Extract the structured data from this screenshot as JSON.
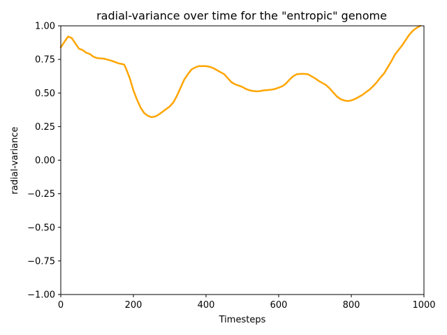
{
  "chart_data": {
    "type": "line",
    "title": "radial-variance over time for the \"entropic\" genome",
    "xlabel": "Timesteps",
    "ylabel": "radial-variance",
    "xlim": [
      0,
      1000
    ],
    "ylim": [
      -1.0,
      1.0
    ],
    "xticks": [
      0,
      200,
      400,
      600,
      800,
      1000
    ],
    "xtick_labels": [
      "0",
      "200",
      "400",
      "600",
      "800",
      "1000"
    ],
    "yticks": [
      -1.0,
      -0.75,
      -0.5,
      -0.25,
      0.0,
      0.25,
      0.5,
      0.75,
      1.0
    ],
    "ytick_labels": [
      "−1.00",
      "−0.75",
      "−0.50",
      "−0.25",
      "0.00",
      "0.25",
      "0.50",
      "0.75",
      "1.00"
    ],
    "grid": false,
    "series": [
      {
        "color": "#ffa500",
        "x": [
          0,
          10,
          20,
          30,
          40,
          50,
          60,
          70,
          80,
          90,
          100,
          120,
          140,
          150,
          160,
          170,
          175,
          180,
          190,
          200,
          210,
          220,
          230,
          240,
          250,
          260,
          270,
          280,
          290,
          300,
          310,
          320,
          330,
          340,
          350,
          360,
          370,
          380,
          390,
          400,
          410,
          420,
          430,
          440,
          450,
          460,
          470,
          480,
          490,
          500,
          510,
          520,
          530,
          540,
          550,
          560,
          570,
          580,
          590,
          600,
          610,
          620,
          630,
          640,
          650,
          660,
          670,
          680,
          690,
          700,
          710,
          720,
          730,
          740,
          750,
          760,
          770,
          780,
          790,
          800,
          810,
          820,
          830,
          840,
          850,
          860,
          870,
          880,
          890,
          900,
          910,
          920,
          930,
          940,
          950,
          960,
          970,
          980,
          990
        ],
        "y": [
          0.84,
          0.88,
          0.92,
          0.91,
          0.87,
          0.83,
          0.82,
          0.8,
          0.79,
          0.77,
          0.76,
          0.755,
          0.74,
          0.73,
          0.72,
          0.715,
          0.71,
          0.68,
          0.61,
          0.52,
          0.45,
          0.39,
          0.35,
          0.33,
          0.32,
          0.325,
          0.34,
          0.36,
          0.38,
          0.4,
          0.43,
          0.48,
          0.54,
          0.6,
          0.64,
          0.675,
          0.69,
          0.7,
          0.7,
          0.7,
          0.695,
          0.685,
          0.67,
          0.655,
          0.64,
          0.61,
          0.58,
          0.565,
          0.555,
          0.545,
          0.53,
          0.52,
          0.515,
          0.512,
          0.515,
          0.52,
          0.522,
          0.525,
          0.53,
          0.54,
          0.55,
          0.57,
          0.6,
          0.625,
          0.64,
          0.642,
          0.642,
          0.64,
          0.625,
          0.61,
          0.59,
          0.575,
          0.56,
          0.535,
          0.505,
          0.475,
          0.455,
          0.445,
          0.44,
          0.445,
          0.455,
          0.47,
          0.485,
          0.505,
          0.525,
          0.55,
          0.58,
          0.615,
          0.645,
          0.69,
          0.735,
          0.785,
          0.82,
          0.855,
          0.895,
          0.935,
          0.965,
          0.985,
          1.0
        ]
      }
    ]
  }
}
